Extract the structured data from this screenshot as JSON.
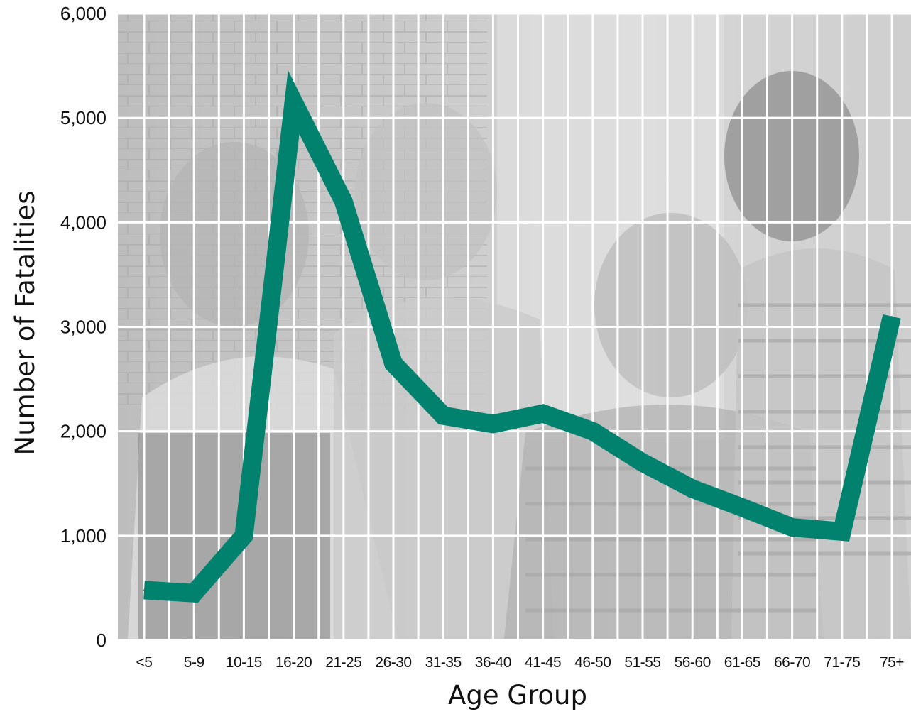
{
  "chart_data": {
    "type": "line",
    "xlabel": "Age Group",
    "ylabel": "Number of Fatalities",
    "ylim": [
      0,
      6000
    ],
    "yticks": [
      "0",
      "1,000",
      "2,000",
      "3,000",
      "4,000",
      "5,000",
      "6,000"
    ],
    "categories": [
      "<5",
      "5-9",
      "10-15",
      "16-20",
      "21-25",
      "26-30",
      "31-35",
      "36-40",
      "41-45",
      "46-50",
      "51-55",
      "56-60",
      "61-65",
      "66-70",
      "71-75",
      "75+"
    ],
    "series": [
      {
        "values": [
          480,
          450,
          1000,
          5150,
          4200,
          2650,
          2150,
          2070,
          2170,
          2000,
          1700,
          1450,
          1270,
          1080,
          1040,
          3100
        ]
      }
    ],
    "grid": true,
    "line_color": "#00826f",
    "background": "grayscale photograph of children outside a brick school building"
  }
}
